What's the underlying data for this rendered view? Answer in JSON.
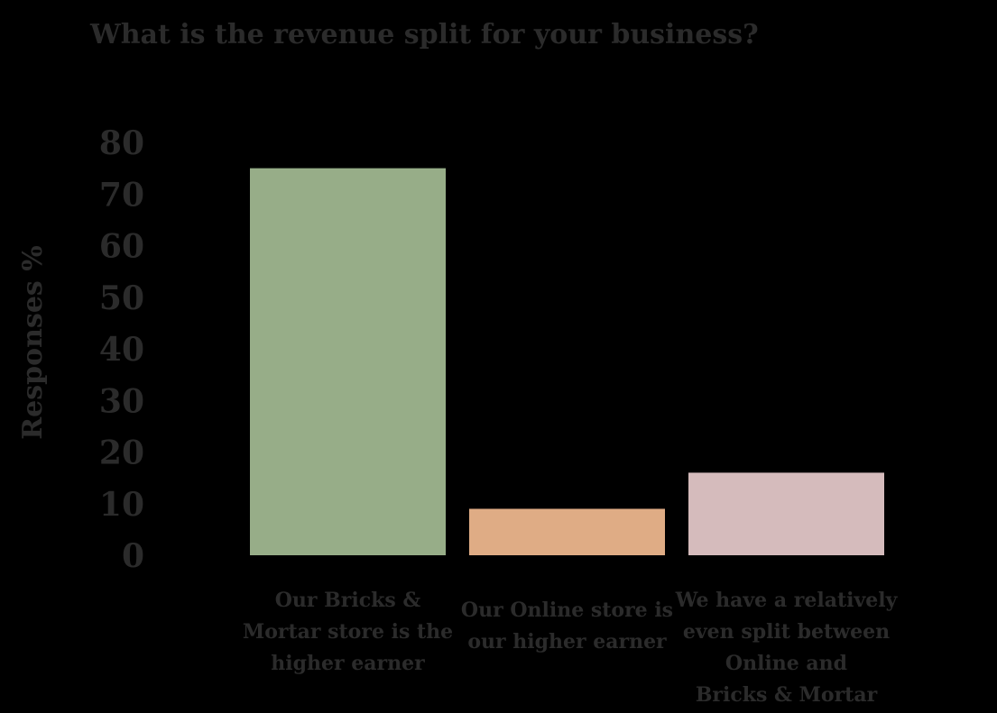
{
  "chart_data": {
    "type": "bar",
    "title": "What is the revenue split for your business?",
    "xlabel": "",
    "ylabel": "Responses %",
    "ylim": [
      0,
      80
    ],
    "yticks": [
      0,
      10,
      20,
      30,
      40,
      50,
      60,
      70,
      80
    ],
    "grid": false,
    "categories": [
      [
        "Our Bricks &",
        "Mortar store is the",
        "higher earner"
      ],
      [
        "Our Online store is",
        "our higher earner"
      ],
      [
        "We have a relatively",
        "even split between",
        "Online and",
        "Bricks & Mortar"
      ]
    ],
    "values": [
      75,
      9,
      16
    ],
    "colors": [
      "#97ad88",
      "#dfac85",
      "#d5bbbc"
    ]
  }
}
